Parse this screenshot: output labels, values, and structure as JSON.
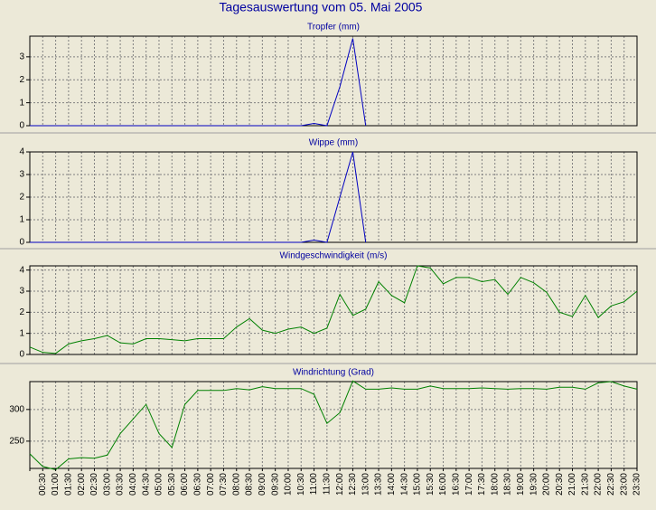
{
  "title": "Tagesauswertung vom 05. Mai 2005",
  "chart_data": [
    {
      "type": "line",
      "title": "Tropfer (mm)",
      "color": "#0000c0",
      "ylim": [
        0,
        3.9
      ],
      "yticks": [
        0,
        1,
        2,
        3
      ],
      "grid": true,
      "values": [
        0,
        0,
        0,
        0,
        0,
        0,
        0,
        0,
        0,
        0,
        0,
        0,
        0,
        0,
        0,
        0,
        0,
        0,
        0,
        0,
        0,
        0,
        0.1,
        0,
        1.7,
        3.8,
        0,
        null,
        null,
        null,
        null,
        null,
        null,
        null,
        null,
        null,
        null,
        null,
        null,
        null,
        null,
        null,
        null,
        null,
        null,
        null,
        null,
        null
      ]
    },
    {
      "type": "line",
      "title": "Wippe (mm)",
      "color": "#0000c0",
      "ylim": [
        0,
        4
      ],
      "yticks": [
        0,
        1,
        2,
        3,
        4
      ],
      "grid": true,
      "values": [
        0,
        0,
        0,
        0,
        0,
        0,
        0,
        0,
        0,
        0,
        0,
        0,
        0,
        0,
        0,
        0,
        0,
        0,
        0,
        0,
        0,
        0,
        0.1,
        0,
        2.0,
        4.0,
        0,
        null,
        null,
        null,
        null,
        null,
        null,
        null,
        null,
        null,
        null,
        null,
        null,
        null,
        null,
        null,
        null,
        null,
        null,
        null,
        null,
        null
      ]
    },
    {
      "type": "line",
      "title": "Windgeschwindigkeit (m/s)",
      "color": "#008000",
      "ylim": [
        0,
        4.2
      ],
      "yticks": [
        0,
        1,
        2,
        3,
        4
      ],
      "grid": true,
      "values": [
        0.35,
        0.1,
        0.05,
        0.5,
        0.65,
        0.75,
        0.9,
        0.55,
        0.5,
        0.75,
        0.75,
        0.7,
        0.65,
        0.75,
        0.75,
        0.75,
        1.3,
        1.7,
        1.15,
        1.0,
        1.2,
        1.3,
        1.0,
        1.25,
        2.85,
        1.85,
        2.15,
        3.45,
        2.8,
        2.45,
        4.2,
        4.1,
        3.35,
        3.65,
        3.65,
        3.45,
        3.55,
        2.85,
        3.65,
        3.4,
        2.95,
        2.0,
        1.8,
        2.8,
        1.75,
        2.3,
        2.5,
        3.0
      ]
    },
    {
      "type": "line",
      "title": "Windrichtung (Grad)",
      "color": "#008000",
      "ylim": [
        207,
        344
      ],
      "yticks": [
        250,
        300
      ],
      "grid": true,
      "categories": [
        null,
        "00:30",
        "01:00",
        "01:30",
        "02:00",
        "02:30",
        "03:00",
        "03:30",
        "04:00",
        "04:30",
        "05:00",
        "05:30",
        "06:00",
        "06:30",
        "07:00",
        "07:30",
        "08:00",
        "08:30",
        "09:00",
        "09:30",
        "10:00",
        "10:30",
        "11:00",
        "11:30",
        "12:00",
        "12:30",
        "13:00",
        "13:30",
        "14:00",
        "14:30",
        "15:00",
        "15:30",
        "16:00",
        "16:30",
        "17:00",
        "17:30",
        "18:00",
        "18:30",
        "19:00",
        "19:30",
        "20:00",
        "20:30",
        "21:00",
        "21:30",
        "22:00",
        "22:30",
        "23:00",
        "23:30"
      ],
      "values": [
        230,
        210,
        205,
        222,
        224,
        223,
        228,
        262,
        285,
        308,
        262,
        240,
        308,
        330,
        330,
        330,
        333,
        331,
        336,
        333,
        333,
        333,
        324,
        278,
        295,
        345,
        332,
        332,
        334,
        332,
        332,
        337,
        333,
        333,
        333,
        334,
        333,
        332,
        333,
        333,
        332,
        335,
        335,
        332,
        342,
        344,
        337,
        332
      ]
    }
  ]
}
